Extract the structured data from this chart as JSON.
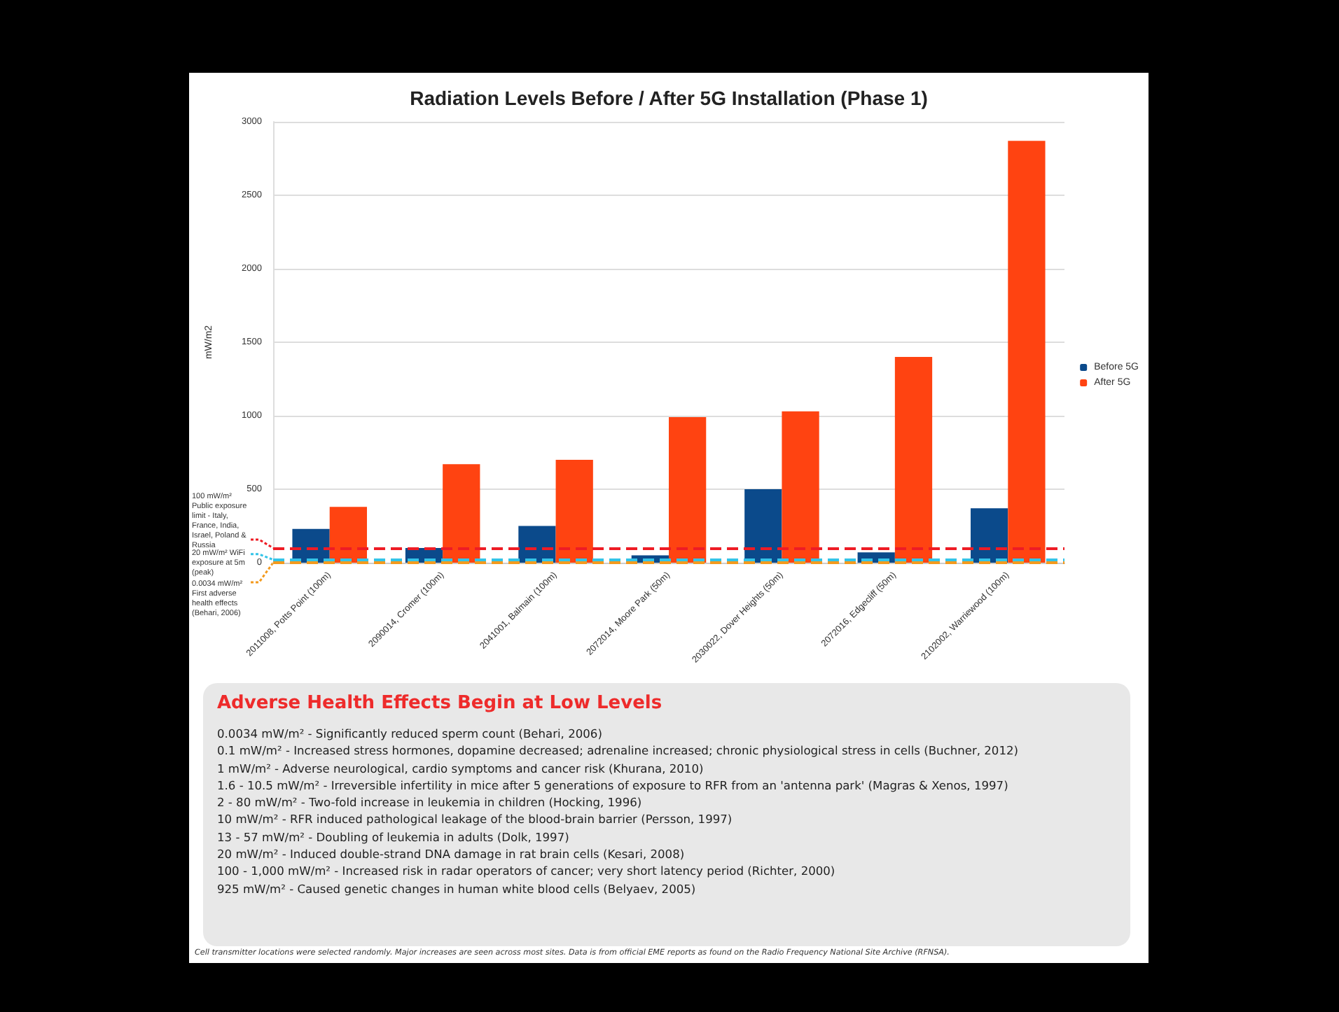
{
  "chart_data": {
    "type": "bar",
    "title": "Radiation Levels Before / After 5G Installation (Phase 1)",
    "ylabel": "mW/m2",
    "categories": [
      "2011008, Potts Point (100m)",
      "2090014, Cromer (100m)",
      "2041001, Balmain (100m)",
      "2072014, Moore Park (50m)",
      "2030022, Dover Heights (50m)",
      "2072016, Edgecliff (50m)",
      "2102002, Warriewood (100m)"
    ],
    "series": [
      {
        "name": "Before 5G",
        "color": "#0b4a8b",
        "values": [
          230,
          100,
          250,
          50,
          500,
          70,
          370
        ]
      },
      {
        "name": "After 5G",
        "color": "#ff4311",
        "values": [
          380,
          670,
          700,
          990,
          1030,
          1400,
          2870
        ]
      }
    ],
    "ylim": [
      0,
      3000
    ],
    "yticks": [
      0,
      500,
      1000,
      1500,
      2000,
      2500,
      3000
    ],
    "grid": "y",
    "legend": "right",
    "ref_lines": [
      {
        "axis": "y",
        "value": 100,
        "label": "100 mW/m² Public exposure limit - Italy, France, India, Israel, Poland & Russia",
        "color": "#ee1c25",
        "line_style": "dashed"
      },
      {
        "axis": "y",
        "value": 20,
        "label": "20 mW/m² WiFi exposure at 5m (peak)",
        "color": "#33c4e8",
        "line_style": "dashed"
      },
      {
        "axis": "y",
        "value": 0.0034,
        "label": "0.0034 mW/m² First adverse health effects (Behari, 2006)",
        "color": "#f39a1e",
        "line_style": "dashed"
      }
    ],
    "annotations": [
      "Adverse Health Effects Begin at Low Levels",
      "0.0034 mW/m² - Significantly reduced sperm count (Behari, 2006)",
      "0.1 mW/m² - Increased stress hormones, dopamine decreased; adrenaline increased; chronic physiological stress in cells (Buchner, 2012)",
      "1 mW/m² - Adverse neurological, cardio symptoms and cancer risk (Khurana, 2010)",
      "1.6 - 10.5 mW/m² - Irreversible infertility in mice after 5 generations of exposure to RFR from an 'antenna park' (Magras & Xenos, 1997)",
      "2 - 80 mW/m² - Two-fold increase in leukemia in children (Hocking, 1996)",
      "10 mW/m² - RFR induced pathological leakage of the blood-brain barrier (Persson, 1997)",
      "13 - 57 mW/m² - Doubling of leukemia in adults (Dolk, 1997)",
      "20 mW/m² - Induced double-strand DNA damage in rat brain cells (Kesari, 2008)",
      "100 - 1,000 mW/m² - Increased risk in radar operators of cancer; very short latency period (Richter, 2000)",
      "925 mW/m² - Caused genetic changes in human white blood cells (Belyaev, 2005)",
      "Cell transmitter locations were selected randomly. Major increases are seen across most sites. Data is from official EME reports as found on the Radio Frequency National Site Archive (RFNSA)."
    ]
  }
}
